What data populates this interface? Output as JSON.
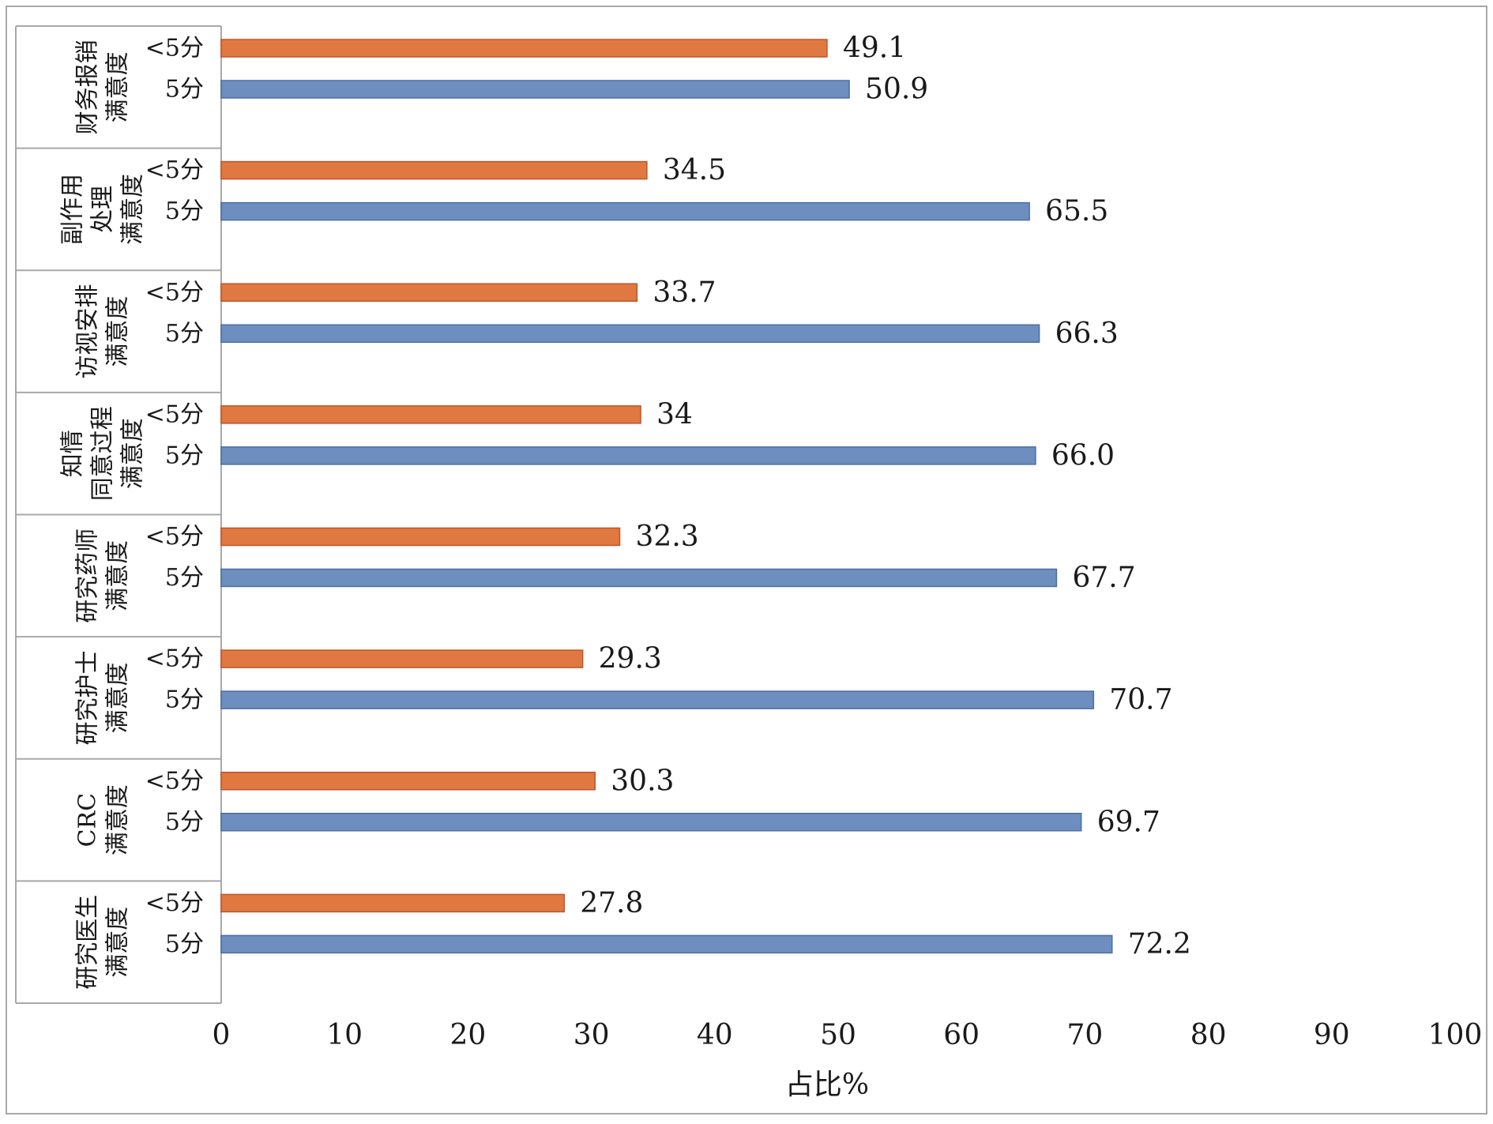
{
  "colors": {
    "lt5": "#E07842",
    "lt5_stroke": "#C0552A",
    "eq5": "#6D8EBE",
    "eq5_stroke": "#4A6FA3",
    "frame": "#a8a8a8"
  },
  "chart_data": {
    "type": "bar",
    "orientation": "horizontal",
    "xlabel": "占比%",
    "xlim": [
      0,
      100
    ],
    "x_ticks": [
      "0",
      "10",
      "20",
      "30",
      "40",
      "50",
      "60",
      "70",
      "80",
      "90",
      "100"
    ],
    "grid": false,
    "legend": "none",
    "groups": [
      {
        "label_lines": [
          "财务报销",
          "满意度"
        ],
        "bars": [
          {
            "label": "<5分",
            "value": 49.1,
            "value_text": "49.1",
            "color_key": "lt5"
          },
          {
            "label": "5分",
            "value": 50.9,
            "value_text": "50.9",
            "color_key": "eq5"
          }
        ]
      },
      {
        "label_lines": [
          "副作用",
          "处理",
          "满意度"
        ],
        "bars": [
          {
            "label": "<5分",
            "value": 34.5,
            "value_text": "34.5",
            "color_key": "lt5"
          },
          {
            "label": "5分",
            "value": 65.5,
            "value_text": "65.5",
            "color_key": "eq5"
          }
        ]
      },
      {
        "label_lines": [
          "访视安排",
          "满意度"
        ],
        "bars": [
          {
            "label": "<5分",
            "value": 33.7,
            "value_text": "33.7",
            "color_key": "lt5"
          },
          {
            "label": "5分",
            "value": 66.3,
            "value_text": "66.3",
            "color_key": "eq5"
          }
        ]
      },
      {
        "label_lines": [
          "知情",
          "同意过程",
          "满意度"
        ],
        "bars": [
          {
            "label": "<5分",
            "value": 34.0,
            "value_text": "34",
            "color_key": "lt5"
          },
          {
            "label": "5分",
            "value": 66.0,
            "value_text": "66.0",
            "color_key": "eq5"
          }
        ]
      },
      {
        "label_lines": [
          "研究药师",
          "满意度"
        ],
        "bars": [
          {
            "label": "<5分",
            "value": 32.3,
            "value_text": "32.3",
            "color_key": "lt5"
          },
          {
            "label": "5分",
            "value": 67.7,
            "value_text": "67.7",
            "color_key": "eq5"
          }
        ]
      },
      {
        "label_lines": [
          "研究护士",
          "满意度"
        ],
        "bars": [
          {
            "label": "<5分",
            "value": 29.3,
            "value_text": "29.3",
            "color_key": "lt5"
          },
          {
            "label": "5分",
            "value": 70.7,
            "value_text": "70.7",
            "color_key": "eq5"
          }
        ]
      },
      {
        "label_lines": [
          "CRC",
          "满意度"
        ],
        "bars": [
          {
            "label": "<5分",
            "value": 30.3,
            "value_text": "30.3",
            "color_key": "lt5"
          },
          {
            "label": "5分",
            "value": 69.7,
            "value_text": "69.7",
            "color_key": "eq5"
          }
        ]
      },
      {
        "label_lines": [
          "研究医生",
          "满意度"
        ],
        "bars": [
          {
            "label": "<5分",
            "value": 27.8,
            "value_text": "27.8",
            "color_key": "lt5"
          },
          {
            "label": "5分",
            "value": 72.2,
            "value_text": "72.2",
            "color_key": "eq5"
          }
        ]
      }
    ]
  }
}
